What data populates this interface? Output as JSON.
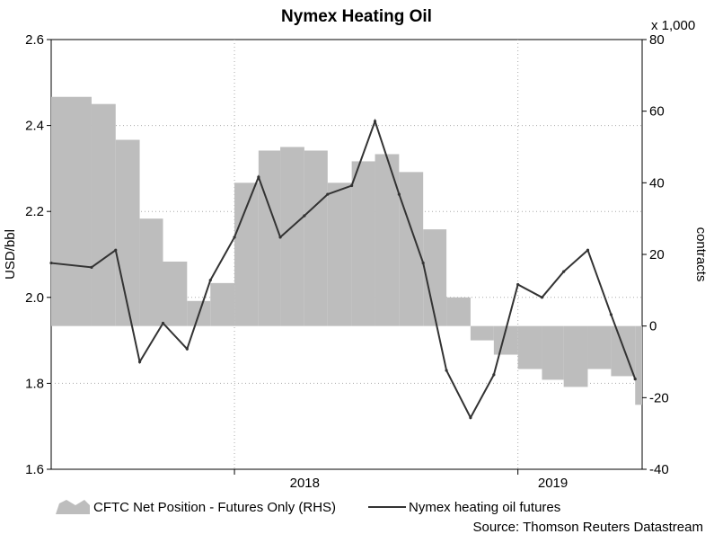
{
  "chart_data": {
    "type": "line",
    "title": "Nymex Heating Oil",
    "left_axis": {
      "label": "USD/bbl",
      "min": 1.6,
      "max": 2.6,
      "ticks": [
        "1.6",
        "1.8",
        "2.0",
        "2.2",
        "2.4",
        "2.6"
      ]
    },
    "right_axis": {
      "label": "contracts",
      "unit_note": "x 1,000",
      "min": -40,
      "max": 80,
      "ticks": [
        "-40",
        "-20",
        "0",
        "20",
        "40",
        "60",
        "80"
      ]
    },
    "x_axis": {
      "ticks": [
        "2018",
        "2019"
      ]
    },
    "grid": true,
    "x": [
      "2017-06",
      "2017-07",
      "2017-08",
      "2017-09",
      "2017-10",
      "2017-11",
      "2017-12",
      "2018-01",
      "2018-02",
      "2018-03",
      "2018-04",
      "2018-05",
      "2018-06",
      "2018-07",
      "2018-08",
      "2018-09",
      "2018-10",
      "2018-11",
      "2018-12",
      "2019-01",
      "2019-02",
      "2019-03",
      "2019-04",
      "2019-05",
      "2019-06"
    ],
    "series": [
      {
        "name": "CFTC Net Position - Futures Only (RHS)",
        "axis": "right",
        "type": "area",
        "color": "#bdbdbd",
        "values": [
          64,
          62,
          52,
          30,
          18,
          7,
          12,
          40,
          49,
          50,
          49,
          40,
          46,
          48,
          43,
          27,
          8,
          -4,
          -8,
          -12,
          -15,
          -17,
          -12,
          -14,
          -22
        ]
      },
      {
        "name": "Nymex heating oil futures",
        "axis": "left",
        "type": "line",
        "color": "#333333",
        "values": [
          2.08,
          2.07,
          2.11,
          1.85,
          1.94,
          1.88,
          2.04,
          2.14,
          2.28,
          2.14,
          2.19,
          2.24,
          2.26,
          2.41,
          2.24,
          2.08,
          1.83,
          1.72,
          1.82,
          2.03,
          2.0,
          2.06,
          2.11,
          1.96,
          1.81
        ]
      }
    ]
  },
  "legend": {
    "items": [
      "CFTC Net Position - Futures Only (RHS)",
      "Nymex heating oil futures"
    ]
  },
  "source": "Source: Thomson Reuters Datastream"
}
